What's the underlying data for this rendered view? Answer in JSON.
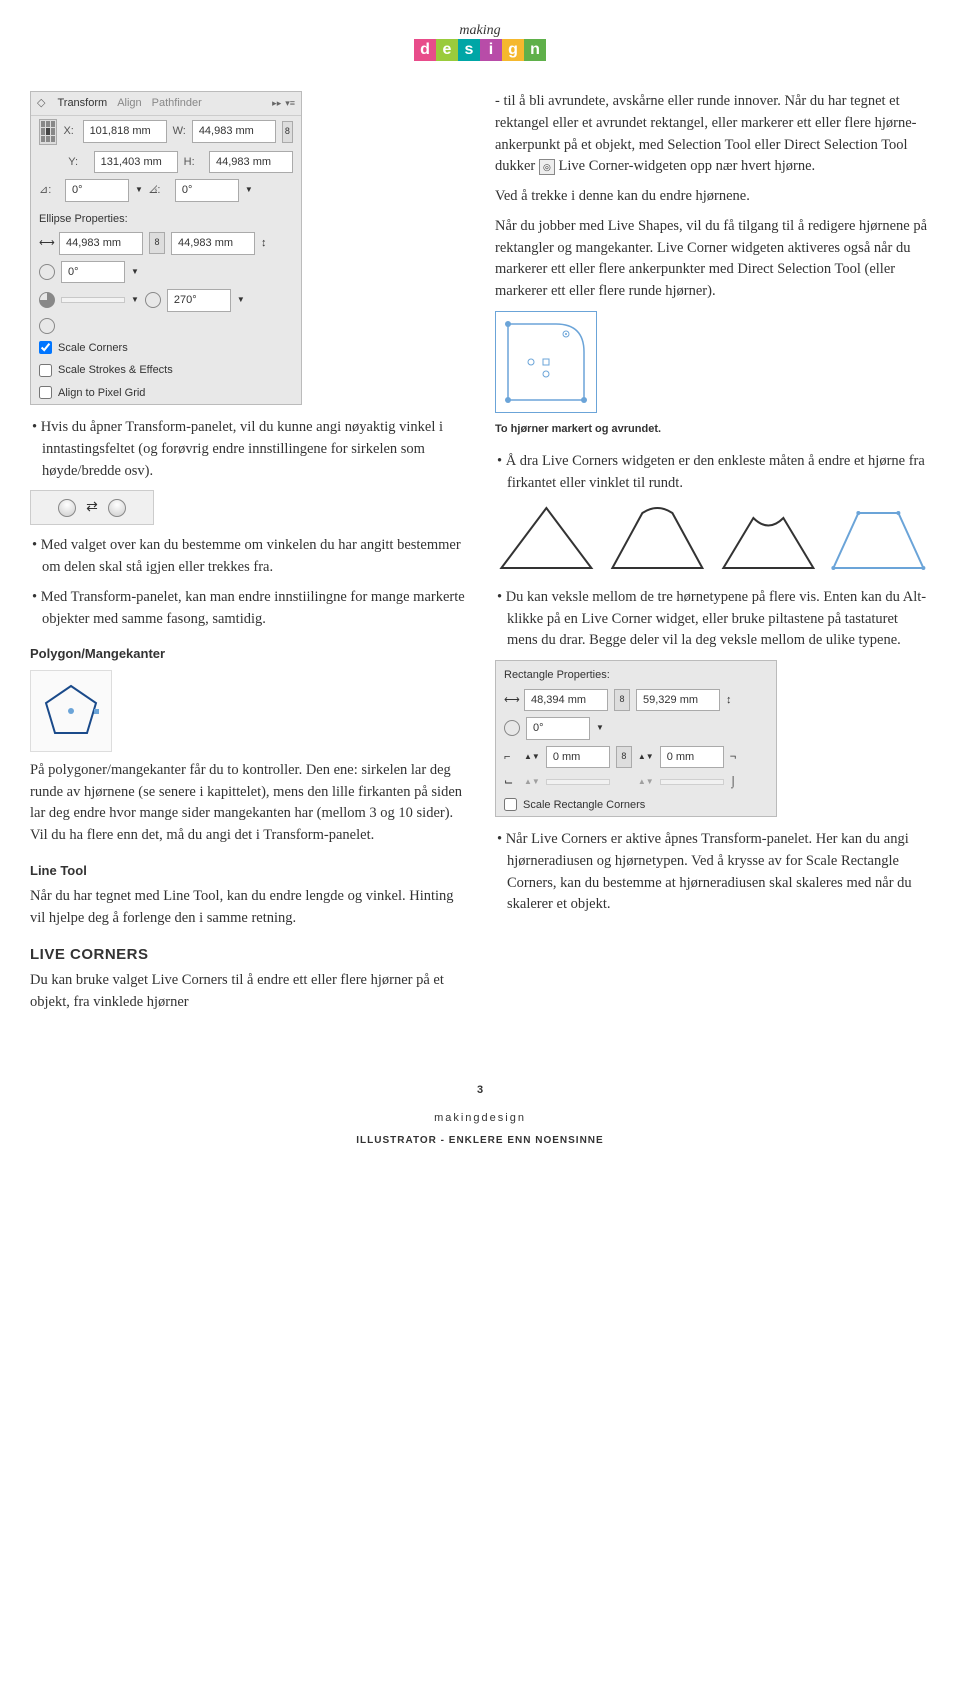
{
  "logo": {
    "top": "making",
    "letters": [
      "d",
      "e",
      "s",
      "i",
      "g",
      "n"
    ],
    "colors": [
      "#e84c8a",
      "#9acb3c",
      "#00a6a6",
      "#b84ca8",
      "#f5b82e",
      "#5fb04a"
    ]
  },
  "transform_panel": {
    "tabs": [
      "Transform",
      "Align",
      "Pathfinder"
    ],
    "active_tab": "Transform",
    "x_label": "X:",
    "x_value": "101,818 mm",
    "w_label": "W:",
    "w_value": "44,983 mm",
    "y_label": "Y:",
    "y_value": "131,403 mm",
    "h_label": "H:",
    "h_value": "44,983 mm",
    "angle1_label": "⊿:",
    "angle1_value": "0°",
    "angle2_label": "⦞:",
    "angle2_value": "0°",
    "section": "Ellipse Properties:",
    "ew_value": "44,983 mm",
    "eh_value": "44,983 mm",
    "rot_value": "0°",
    "pie_value": "270°",
    "check1": "Scale Corners",
    "check2": "Scale Strokes & Effects",
    "check3": "Align to Pixel Grid"
  },
  "left": {
    "p1": "Hvis du åpner Transform-panelet, vil du kunne angi nøyaktig vinkel i inntastingsfeltet (og forøvrig endre innstillingene for sirkelen som høyde/bredde osv).",
    "p2": "Med valget over kan du bestemme om vinkelen du har angitt bestemmer om delen skal stå igjen eller trekkes fra.",
    "p3": "Med Transform-panelet, kan man endre innstiilingne for mange markerte objekter med samme fasong, samtidig.",
    "h_polygon": "Polygon/Mangekanter",
    "p4": "På polygoner/mangekanter får du to kontroller. Den ene: sirkelen lar deg runde av hjørnene (se senere i kapittelet), mens den lille firkanten på siden lar deg endre hvor mange sider mangekanten har (mellom 3 og 10 sider). Vil du ha flere enn det, må du angi det i Transform-panelet.",
    "h_linetool": "Line Tool",
    "p5": "Når du har tegnet med Line Tool, kan du endre lengde og vinkel. Hinting vil hjelpe deg å forlenge den i samme retning.",
    "h_livecorners": "LIVE CORNERS",
    "p6": "Du kan bruke valget Live Corners til å endre ett eller flere hjørner på et objekt, fra vinklede hjørner"
  },
  "right": {
    "p1a": "- til å bli avrundete, avskårne eller runde innover. Når du har tegnet et rektangel eller et avrundet rektangel, eller markerer ett eller flere hjørne-ankerpunkt på et objekt, med Selection Tool eller Direct Selection Tool dukker ",
    "p1b": " Live Corner-widgeten opp nær hvert hjørne.",
    "p2": "Ved å trekke i denne kan du endre hjørnene.",
    "p3": "Når du jobber med Live Shapes, vil du få tilgang til å redigere hjørnene på rektangler og mangekanter. Live Corner widgeten aktiveres også når du markerer ett eller flere ankerpunkter med Direct Selection Tool (eller markerer ett eller flere runde hjørner).",
    "caption1": "To hjørner markert og avrundet.",
    "p4": "Å dra Live Corners widgeten er den enkleste måten å endre et hjørne fra firkantet eller vinklet til rundt.",
    "p5": "Du kan veksle mellom de tre hørnetypene på flere vis. Enten kan du Alt-klikke på en Live Corner widget, eller bruke piltastene på tastaturet mens du drar. Begge deler vil la deg veksle mellom de ulike typene.",
    "p6": "Når Live Corners er aktive åpnes Transform-panelet. Her kan du angi hjørneradiusen og hjørnetypen. Ved å krysse av for Scale Rectangle Corners, kan du bestemme at hjørneradiusen skal skaleres med når du skalerer et objekt."
  },
  "rect_panel": {
    "title": "Rectangle Properties:",
    "w_value": "48,394 mm",
    "h_value": "59,329 mm",
    "rot_value": "0°",
    "r1_value": "0 mm",
    "r2_value": "0 mm",
    "check": "Scale Rectangle Corners"
  },
  "footer": {
    "page": "3",
    "brand": "makingdesign",
    "subtitle": "ILLUSTRATOR - ENKLERE ENN NOENSINNE"
  }
}
